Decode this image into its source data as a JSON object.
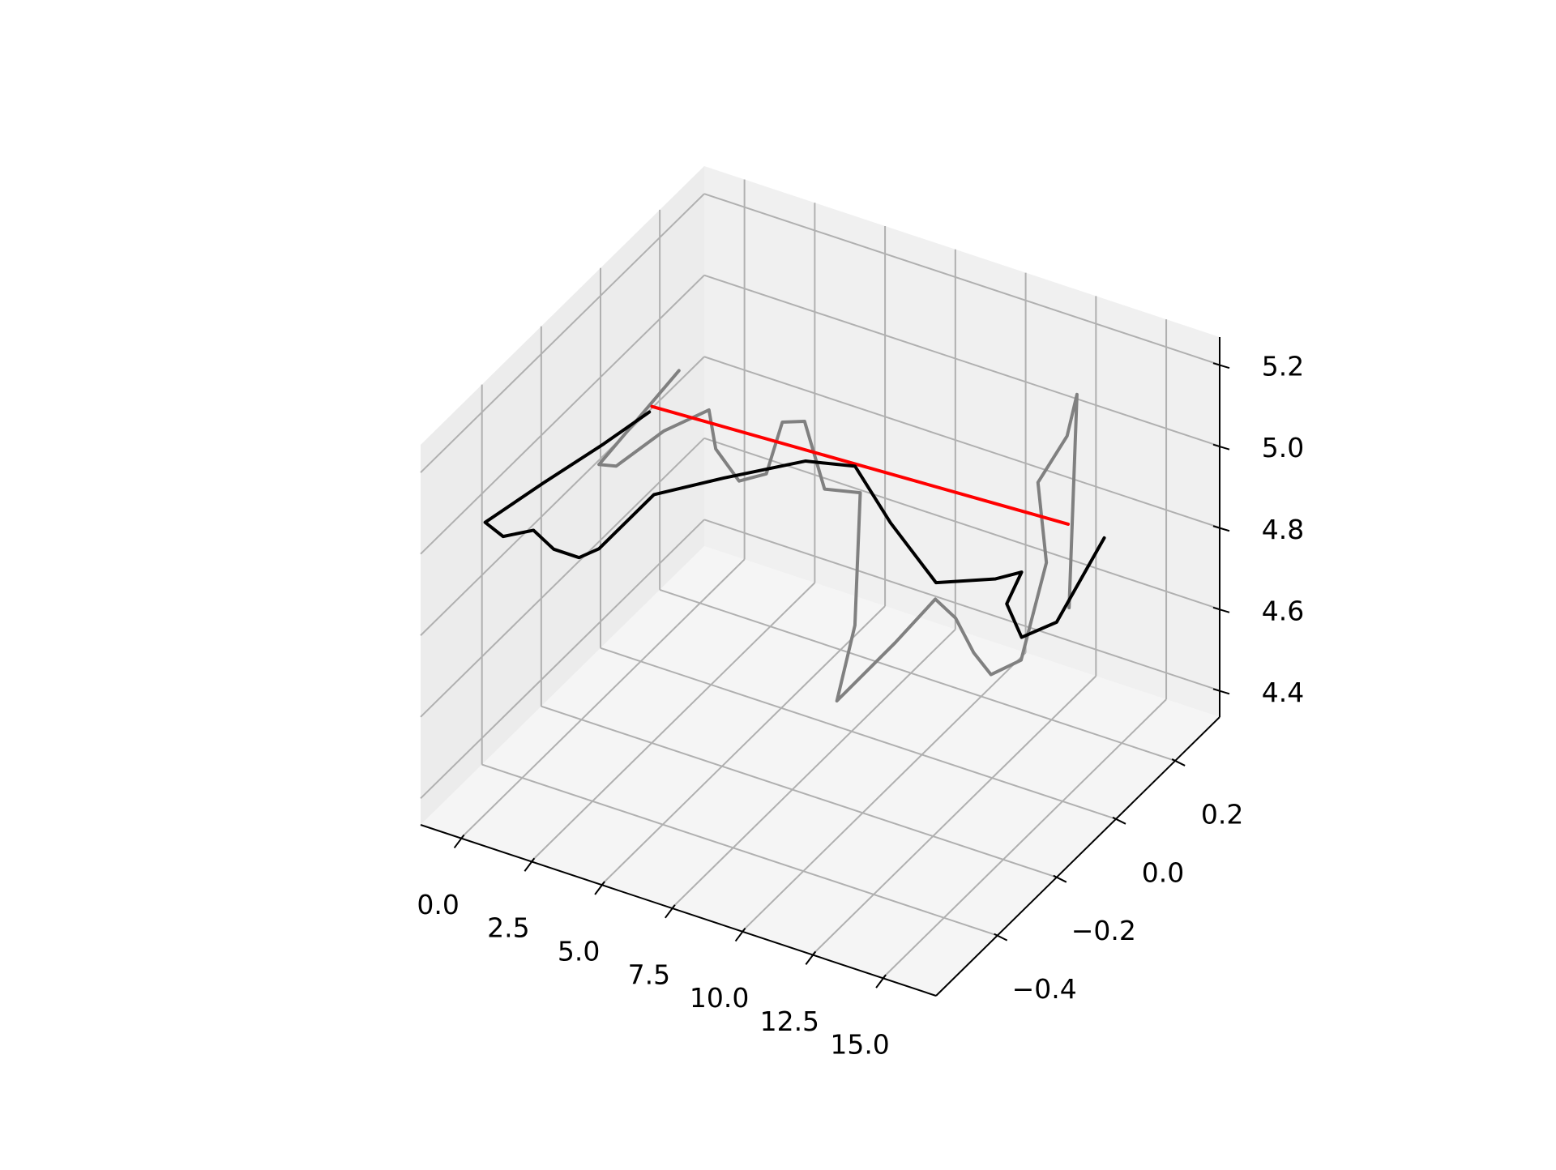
{
  "chart_data": {
    "type": "line3d",
    "xlim": [
      -1.43,
      16.9
    ],
    "ylim": [
      -0.607,
      0.35
    ],
    "zlim": [
      4.335,
      5.268
    ],
    "xticks": [
      {
        "value": 0,
        "label": "0.0"
      },
      2.5,
      {
        "value": 5,
        "label": "5.0"
      },
      7.5,
      {
        "value": 10,
        "label": "10.0"
      },
      12.5,
      {
        "value": 15,
        "label": "15.0"
      }
    ],
    "yticks": [
      {
        "value": -0.4,
        "label": "−0.4"
      },
      {
        "value": -0.2,
        "label": "−0.2"
      },
      {
        "value": 0,
        "label": "0.0"
      },
      0.2
    ],
    "zticks": [
      4.4,
      4.6,
      4.8,
      {
        "value": 5,
        "label": "5.0"
      },
      5.2
    ],
    "grid": true,
    "series": [
      {
        "color": "#808080",
        "x": [
          1.36,
          0.11,
          -0.43,
          0.18,
          0.83,
          1.9,
          2.14,
          2.97,
          3.94,
          4.51,
          5.3,
          6.01,
          7.28,
          7.09,
          6.45,
          8.52,
          9.95,
          10.67,
          11.31,
          11.93,
          13.0,
          13.9,
          13.6,
          14.11,
          14.46,
          14.18
        ],
        "y": [
          0,
          0,
          -0.1,
          -0.1,
          0,
          0.05,
          0.05,
          0.05,
          0.05,
          0.05,
          0.05,
          0.05,
          0.05,
          0.05,
          0.05,
          0.05,
          0.05,
          0.05,
          0.05,
          0.05,
          0.05,
          0.05,
          0.05,
          0.1,
          0.1,
          0.1
        ],
        "z": [
          5.08,
          4.95,
          4.88,
          4.89,
          4.92,
          4.96,
          4.87,
          4.81,
          4.85,
          4.99,
          5.01,
          4.86,
          4.88,
          4.55,
          4.35,
          4.54,
          4.68,
          4.65,
          4.58,
          4.54,
          4.6,
          4.86,
          5.05,
          5.14,
          5.25,
          4.72
        ]
      },
      {
        "color": "#ff0000",
        "x": [
          0.4,
          15.2
        ],
        "y": [
          0,
          0
        ],
        "z": [
          4.97,
          5.02
        ]
      },
      {
        "color": "#000000",
        "x": [
          1.36,
          0.79,
          -0.31,
          -0.79,
          -0.15,
          0.93,
          1.65,
          2.55,
          2.73,
          4.16,
          6.12,
          8.49,
          9.73,
          10.99,
          12.61,
          14.2,
          14.6,
          14.07,
          14.6,
          14.79,
          15.43
        ],
        "y": [
          -0.1,
          -0.2,
          -0.3,
          -0.45,
          -0.45,
          -0.45,
          -0.45,
          -0.45,
          -0.4,
          -0.35,
          -0.3,
          -0.25,
          -0.2,
          -0.2,
          -0.2,
          -0.15,
          -0.1,
          -0.1,
          -0.1,
          0,
          0.1
        ],
        "z": [
          5.05,
          5.03,
          4.98,
          4.98,
          4.96,
          5.0,
          4.97,
          4.97,
          4.96,
          5.09,
          5.14,
          5.2,
          5.18,
          5.07,
          4.96,
          4.97,
          4.96,
          4.87,
          4.8,
          4.77,
          4.92
        ]
      }
    ]
  }
}
